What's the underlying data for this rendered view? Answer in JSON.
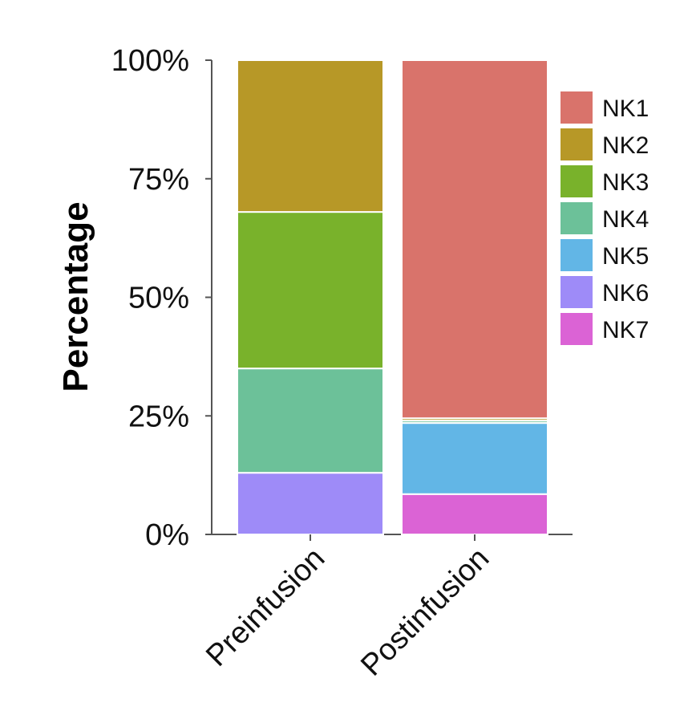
{
  "chart_data": {
    "type": "bar",
    "stacked": true,
    "categories": [
      "Preinfusion",
      "Postinfusion"
    ],
    "ylabel": "Percentage",
    "ylim": [
      0,
      100
    ],
    "yticks": [
      "0%",
      "25%",
      "50%",
      "75%",
      "100%"
    ],
    "ytick_values": [
      0,
      25,
      50,
      75,
      100
    ],
    "legend_position": "right",
    "series": [
      {
        "name": "NK1",
        "color": "#D9736B",
        "values": [
          0,
          75.5
        ]
      },
      {
        "name": "NK2",
        "color": "#B79827",
        "values": [
          32,
          0.5
        ]
      },
      {
        "name": "NK3",
        "color": "#79B22B",
        "values": [
          33,
          0
        ]
      },
      {
        "name": "NK4",
        "color": "#6CC199",
        "values": [
          22,
          0.5
        ]
      },
      {
        "name": "NK5",
        "color": "#62B6E6",
        "values": [
          0,
          15
        ]
      },
      {
        "name": "NK6",
        "color": "#9E8BF8",
        "values": [
          13,
          0
        ]
      },
      {
        "name": "NK7",
        "color": "#DB63D5",
        "values": [
          0,
          8.5
        ]
      }
    ]
  }
}
